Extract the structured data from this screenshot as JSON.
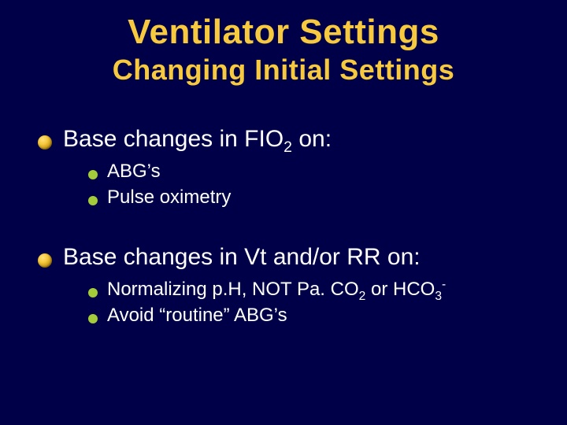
{
  "colors": {
    "background": "#000048",
    "title": "#f7c93e",
    "body_text": "#ffffff",
    "top_bullet_gradient": [
      "#ffe27a",
      "#f7c93e",
      "#aa7d00",
      "#6b4e00"
    ],
    "sub_bullet": "#a4cb39"
  },
  "typography": {
    "title_font": "Arial Black",
    "title_size_pt": 33,
    "subtitle_size_pt": 27,
    "body_font": "Arial",
    "top_item_size_pt": 22,
    "sub_item_size_pt": 18
  },
  "title": "Ventilator Settings",
  "subtitle": "Changing Initial Settings",
  "bullets": [
    {
      "text_html": "Base changes in FIO<sub>2</sub> on:",
      "children": [
        {
          "text_html": "ABG’s"
        },
        {
          "text_html": "Pulse oximetry"
        }
      ]
    },
    {
      "text_html": "Base changes in Vt and/or RR on:",
      "children": [
        {
          "text_html": "Normalizing p.H, NOT Pa. CO<sub>2</sub> or HCO<sub>3</sub><sup>-</sup>"
        },
        {
          "text_html": "Avoid “routine” ABG’s"
        }
      ]
    }
  ]
}
